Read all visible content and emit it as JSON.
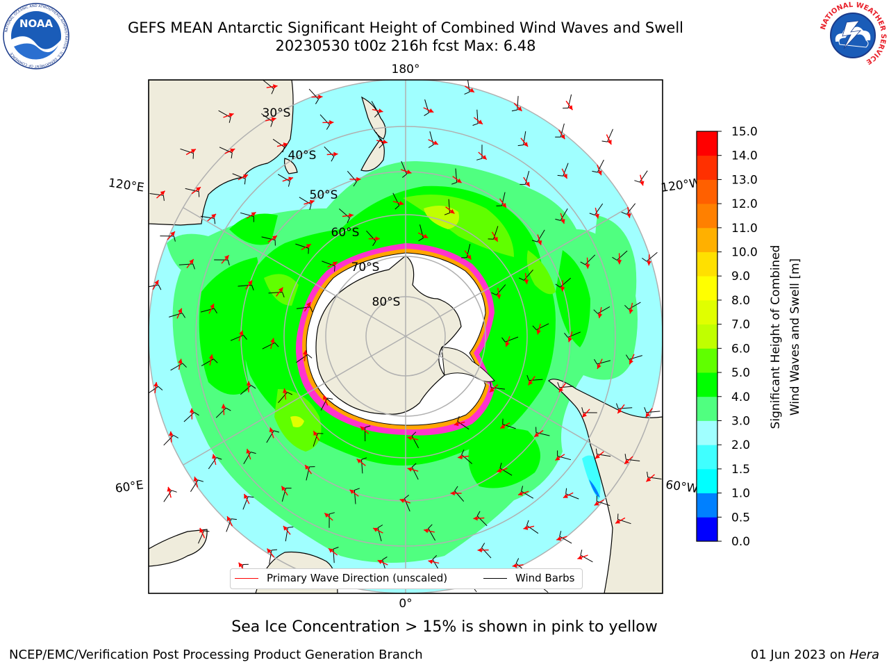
{
  "title": {
    "line1": "GEFS MEAN Antarctic Significant Height of Combined Wind Waves and Swell",
    "line2": "20230530 t00z 216h fcst   Max: 6.48"
  },
  "logos": {
    "left": {
      "name": "noaa-logo",
      "text": "NOAA",
      "ring_text": "NATIONAL OCEANIC AND ATMOSPHERIC ADMINISTRATION · U.S. DEPARTMENT OF COMMERCE"
    },
    "right": {
      "name": "nws-logo",
      "ring_text": "NATIONAL WEATHER SERVICE"
    }
  },
  "map": {
    "longitude_labels": {
      "top": "180°",
      "bottom": "0°",
      "upper_left": "120°E",
      "upper_right": "120°W",
      "lower_left": "60°E",
      "lower_right": "60°W"
    },
    "latitude_labels": [
      "30°S",
      "40°S",
      "50°S",
      "60°S",
      "70°S",
      "80°S"
    ],
    "colors": {
      "land": "#efecdc",
      "ice_shelf": "#ffffff",
      "coast": "#000000",
      "grid": "#b0b0b0",
      "sea_ice": "#ff33cc",
      "wave_arrow": "#ff0000",
      "wind_barb": "#000000"
    }
  },
  "legend": {
    "wave_label": "Primary Wave Direction (unscaled)",
    "wind_label": "Wind Barbs",
    "wave_color": "#ff0000",
    "wind_color": "#000000"
  },
  "colorbar": {
    "label_line1": "Significant Height of Combined",
    "label_line2": "Wind Waves and Swell [m]",
    "bounds": [
      0.0,
      0.5,
      1.0,
      1.5,
      2.0,
      3.0,
      4.0,
      5.0,
      6.0,
      7.0,
      8.0,
      9.0,
      10.0,
      11.0,
      12.0,
      13.0,
      14.0,
      15.0
    ],
    "tick_labels": [
      "0.0",
      "0.5",
      "1.0",
      "1.5",
      "2.0",
      "3.0",
      "4.0",
      "5.0",
      "6.0",
      "7.0",
      "8.0",
      "9.0",
      "10.0",
      "11.0",
      "12.0",
      "13.0",
      "14.0",
      "15.0"
    ],
    "colors": [
      "#0000ff",
      "#0080ff",
      "#00ffff",
      "#40ffff",
      "#a0ffff",
      "#50ff80",
      "#00ff00",
      "#60ff00",
      "#c0ff00",
      "#e0ff00",
      "#ffff00",
      "#ffe000",
      "#ffb000",
      "#ff8000",
      "#ff6000",
      "#ff3000",
      "#ff0000"
    ]
  },
  "caption": "Sea Ice Concentration > 15% is shown in pink to yellow",
  "footer": {
    "left": "NCEP/EMC/Verification Post Processing Product Generation Branch",
    "right_date": "01 Jun 2023 on ",
    "right_host": "Hera"
  }
}
